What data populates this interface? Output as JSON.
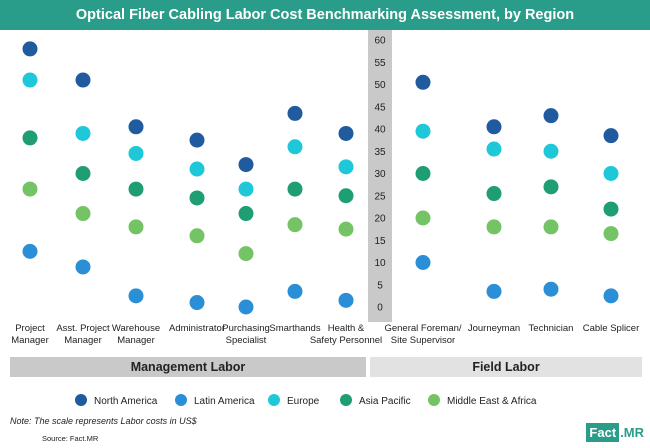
{
  "header": {
    "title": "Optical Fiber Cabling Labor Cost Benchmarking Assessment, by Region"
  },
  "chart_data": {
    "type": "scatter",
    "title": "Optical Fiber Cabling Labor Cost Benchmarking Assessment, by Region",
    "ylim": [
      0,
      60
    ],
    "yticks": [
      0,
      5,
      10,
      15,
      20,
      25,
      30,
      35,
      40,
      45,
      50,
      55,
      60
    ],
    "groups": [
      {
        "name": "Management Labor",
        "categories": [
          "Project Manager",
          "Asst. Project Manager",
          "Warehouse Manager",
          "Administrator",
          "Purchasing Specialist",
          "Smarthands",
          "Health & Safety Personnel"
        ]
      },
      {
        "name": "Field Labor",
        "categories": [
          "General Foreman/ Site Supervisor",
          "Journeyman",
          "Technician",
          "Cable Splicer"
        ]
      }
    ],
    "category_labels": [
      [
        "Project",
        "Manager"
      ],
      [
        "Asst. Project",
        "Manager"
      ],
      [
        "Warehouse",
        "Manager"
      ],
      [
        "Administrator"
      ],
      [
        "Purchasing",
        "Specialist"
      ],
      [
        "Smarthands"
      ],
      [
        "Health &",
        "Safety Personnel"
      ],
      [
        "General Foreman/",
        "Site Supervisor"
      ],
      [
        "Journeyman"
      ],
      [
        "Technician"
      ],
      [
        "Cable Splicer"
      ]
    ],
    "series": [
      {
        "name": "North America",
        "color": "#1f5b9e",
        "values": [
          58,
          51,
          40.5,
          37.5,
          32,
          43.5,
          39,
          50.5,
          40.5,
          43,
          38.5
        ]
      },
      {
        "name": "Latin America",
        "color": "#2a8fd6",
        "values": [
          12.5,
          9,
          2.5,
          1,
          0,
          3.5,
          1.5,
          10,
          3.5,
          4,
          2.5
        ]
      },
      {
        "name": "Europe",
        "color": "#1ec8d8",
        "values": [
          51,
          39,
          34.5,
          31,
          26.5,
          36,
          31.5,
          39.5,
          35.5,
          35,
          30
        ]
      },
      {
        "name": "Asia Pacific",
        "color": "#1e9e72",
        "values": [
          38,
          30,
          26.5,
          24.5,
          21,
          26.5,
          25,
          30,
          25.5,
          27,
          22
        ]
      },
      {
        "name": "Middle East & Africa",
        "color": "#74c365",
        "values": [
          26.5,
          21,
          18,
          16,
          12,
          18.5,
          17.5,
          20,
          18,
          18,
          16.5
        ]
      }
    ]
  },
  "bands": {
    "management": "Management Labor",
    "field": "Field Labor"
  },
  "note": "Note: The scale represents Labor costs in US$",
  "source": "Source: Fact.MR",
  "logo": {
    "fact": "Fact",
    "mr": ".MR"
  }
}
